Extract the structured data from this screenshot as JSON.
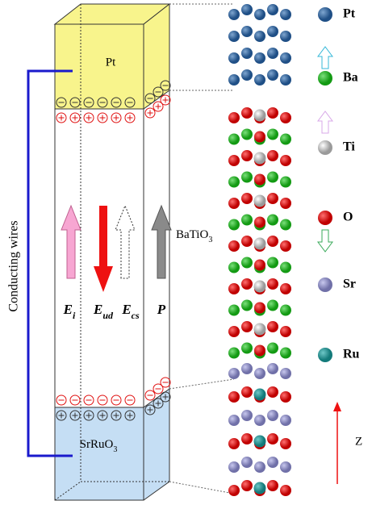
{
  "box": {
    "top_label": "Pt",
    "middle_label": {
      "base": "BaTiO",
      "sub": "3"
    },
    "bottom_label": {
      "base": "SrRuO",
      "sub": "3"
    }
  },
  "wire_label": "Conducting wires",
  "fields": [
    {
      "symbol": "E",
      "sub": "i"
    },
    {
      "symbol": "E",
      "sub": "ud"
    },
    {
      "symbol": "E",
      "sub": "cs"
    },
    {
      "symbol": "P"
    }
  ],
  "legend": [
    "Pt",
    "Ba",
    "Ti",
    "O",
    "Sr",
    "Ru"
  ],
  "axis_label": "Z"
}
